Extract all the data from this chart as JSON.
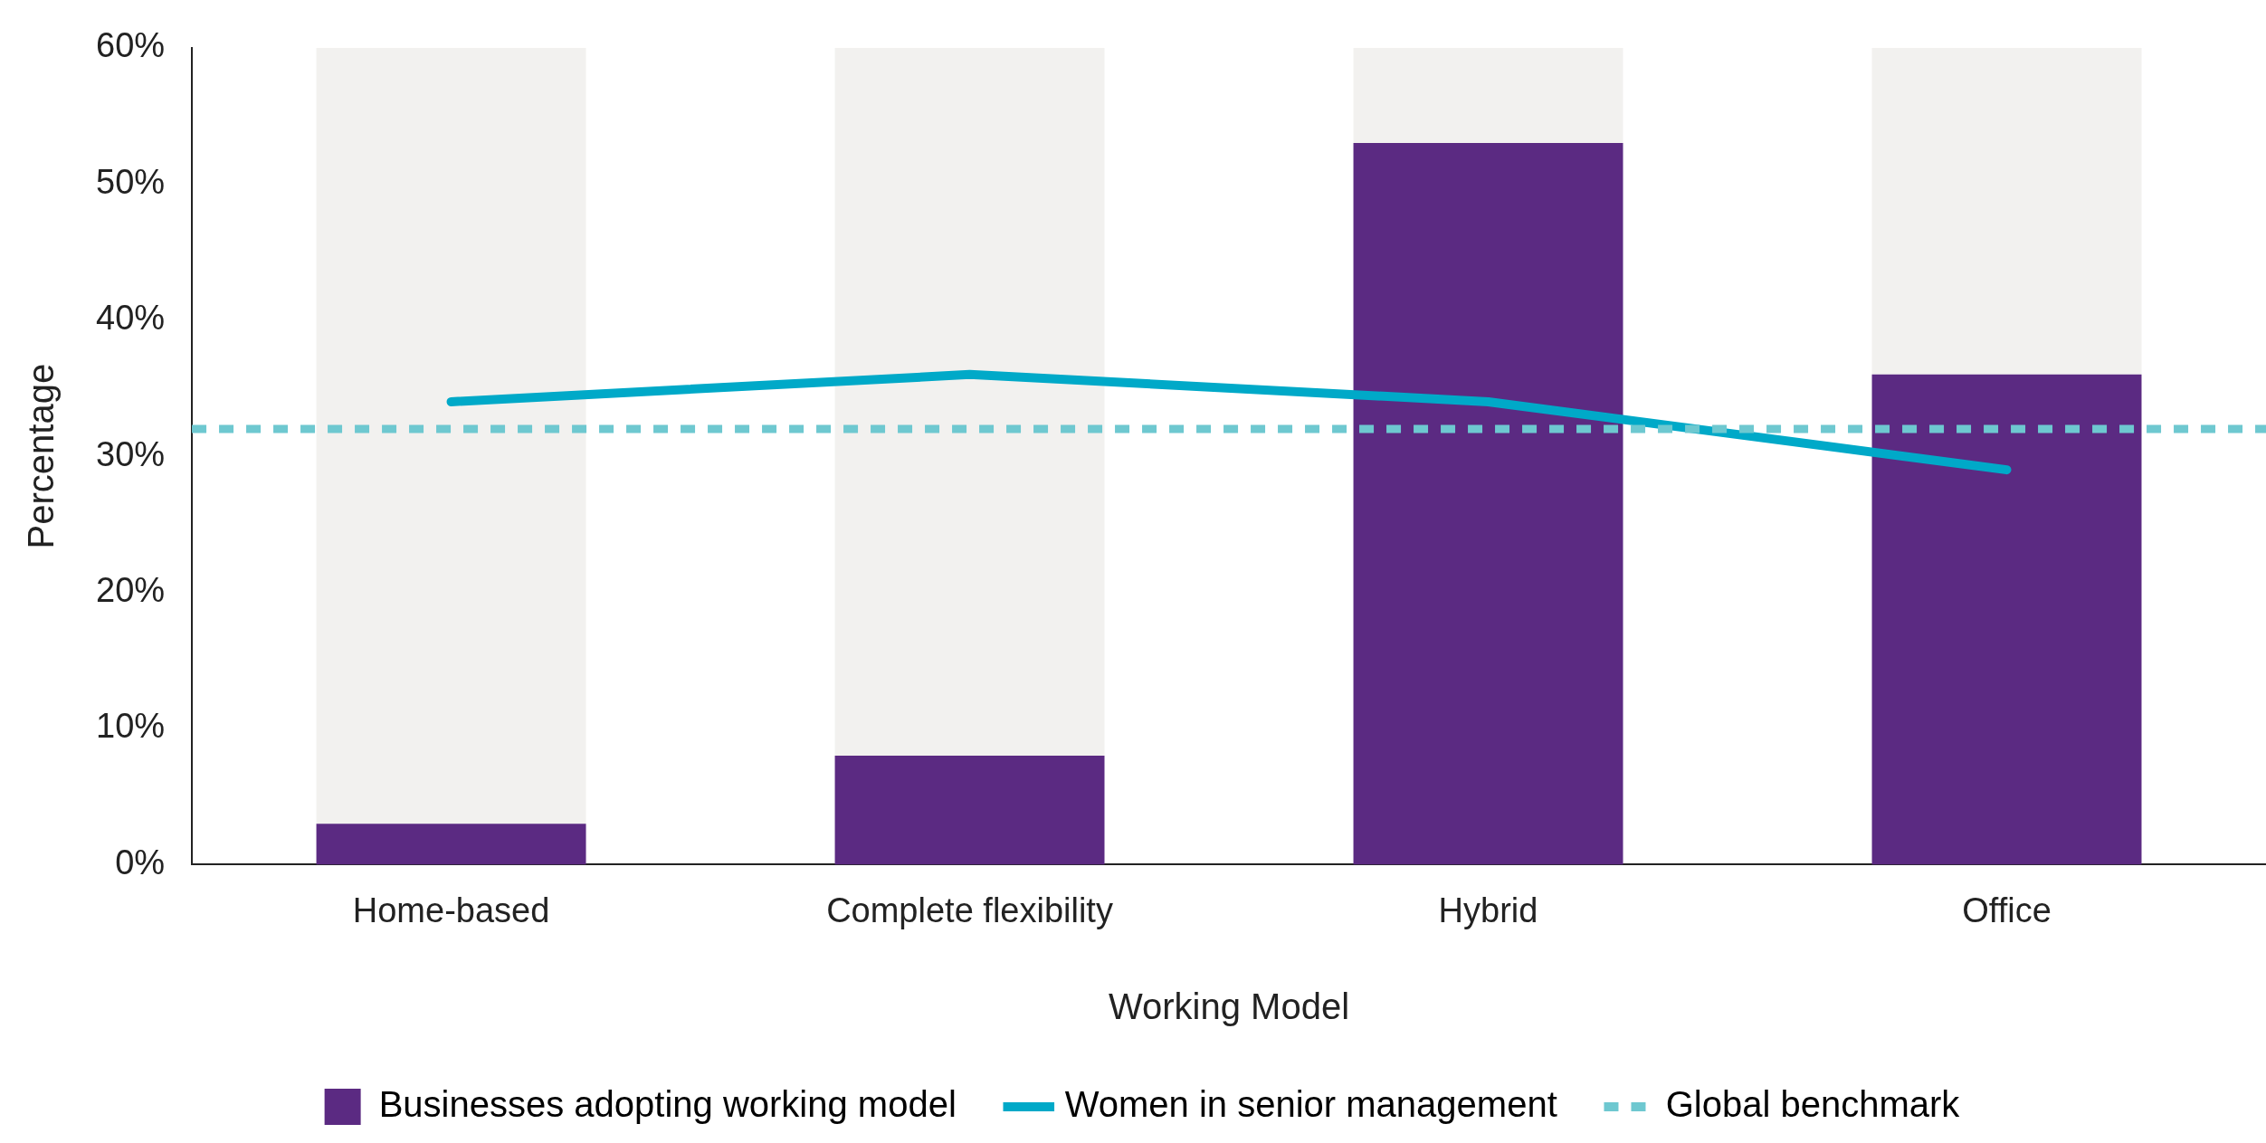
{
  "chart_data": {
    "type": "bar",
    "xlabel": "Working Model",
    "ylabel": "Percentage",
    "categories": [
      "Home-based",
      "Complete flexibility",
      "Hybrid",
      "Office"
    ],
    "stacked": true,
    "series": [
      {
        "name": "Businesses adopting working model",
        "color": "#5b2a82",
        "values": [
          3,
          8,
          53,
          36
        ]
      },
      {
        "color": "#f2f1ef",
        "values": [
          57,
          52,
          7,
          24
        ]
      },
      {
        "type": "line",
        "name": "Women in senior management",
        "color": "#00a9c8",
        "values": [
          34,
          36,
          34,
          29
        ]
      }
    ],
    "ref_lines": [
      {
        "axis": "y",
        "value": 32,
        "label": "Global benchmark",
        "color": "#6ec8d0",
        "line_style": "dashed"
      }
    ],
    "ylim": [
      0,
      60
    ],
    "yticks": [
      {
        "value": 0,
        "label": "0%"
      },
      {
        "value": 10,
        "label": "10%"
      },
      {
        "value": 20,
        "label": "20%"
      },
      {
        "value": 30,
        "label": "30%"
      },
      {
        "value": 40,
        "label": "40%"
      },
      {
        "value": 50,
        "label": "50%"
      },
      {
        "value": 60,
        "label": "60%"
      }
    ],
    "grid": false,
    "legend": "bottom",
    "marker": "none"
  }
}
